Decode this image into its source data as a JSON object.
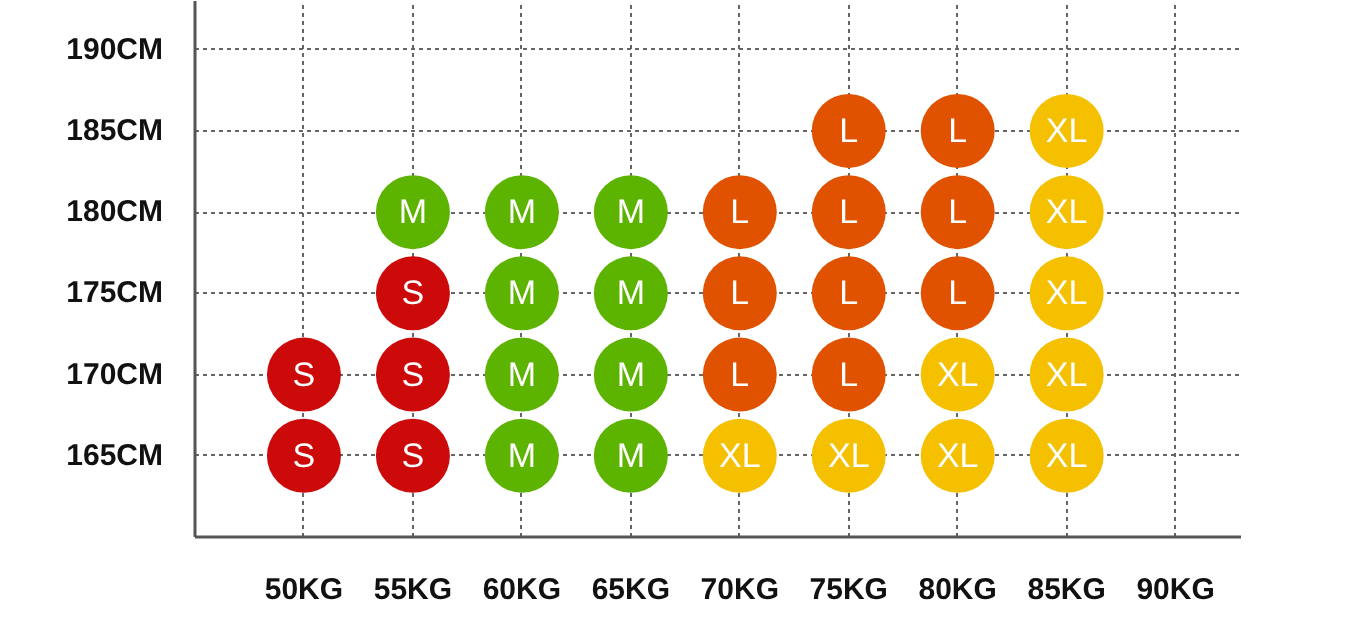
{
  "chart_data": {
    "type": "scatter",
    "marker": "circle",
    "grid": true,
    "legend": false,
    "xlim": [
      45,
      93
    ],
    "ylim": [
      160,
      193
    ],
    "xticks": [
      {
        "value": 50,
        "label": "50KG"
      },
      {
        "value": 55,
        "label": "55KG"
      },
      {
        "value": 60,
        "label": "60KG"
      },
      {
        "value": 65,
        "label": "65KG"
      },
      {
        "value": 70,
        "label": "70KG"
      },
      {
        "value": 75,
        "label": "75KG"
      },
      {
        "value": 80,
        "label": "80KG"
      },
      {
        "value": 85,
        "label": "85KG"
      },
      {
        "value": 90,
        "label": "90KG"
      }
    ],
    "yticks": [
      {
        "value": 165,
        "label": "165CM"
      },
      {
        "value": 170,
        "label": "170CM"
      },
      {
        "value": 175,
        "label": "175CM"
      },
      {
        "value": 180,
        "label": "180CM"
      },
      {
        "value": 185,
        "label": "185CM"
      },
      {
        "value": 190,
        "label": "190CM"
      }
    ],
    "series": [
      {
        "name": "S",
        "color": "#cc0a0a",
        "x": [
          50,
          50,
          55,
          55,
          55
        ],
        "values": [
          170,
          165,
          175,
          170,
          165
        ]
      },
      {
        "name": "M",
        "color": "#5cb300",
        "x": [
          55,
          60,
          60,
          60,
          60,
          65,
          65,
          65,
          65
        ],
        "values": [
          180,
          180,
          175,
          170,
          165,
          180,
          175,
          170,
          165
        ]
      },
      {
        "name": "L",
        "color": "#e05200",
        "x": [
          70,
          70,
          70,
          75,
          75,
          75,
          75,
          80,
          80,
          80
        ],
        "values": [
          180,
          175,
          170,
          185,
          180,
          175,
          170,
          185,
          180,
          175
        ]
      },
      {
        "name": "XL",
        "color": "#f5c000",
        "x": [
          70,
          75,
          80,
          80,
          85,
          85,
          85,
          85,
          85
        ],
        "values": [
          165,
          165,
          170,
          165,
          185,
          180,
          175,
          170,
          165
        ]
      }
    ]
  }
}
